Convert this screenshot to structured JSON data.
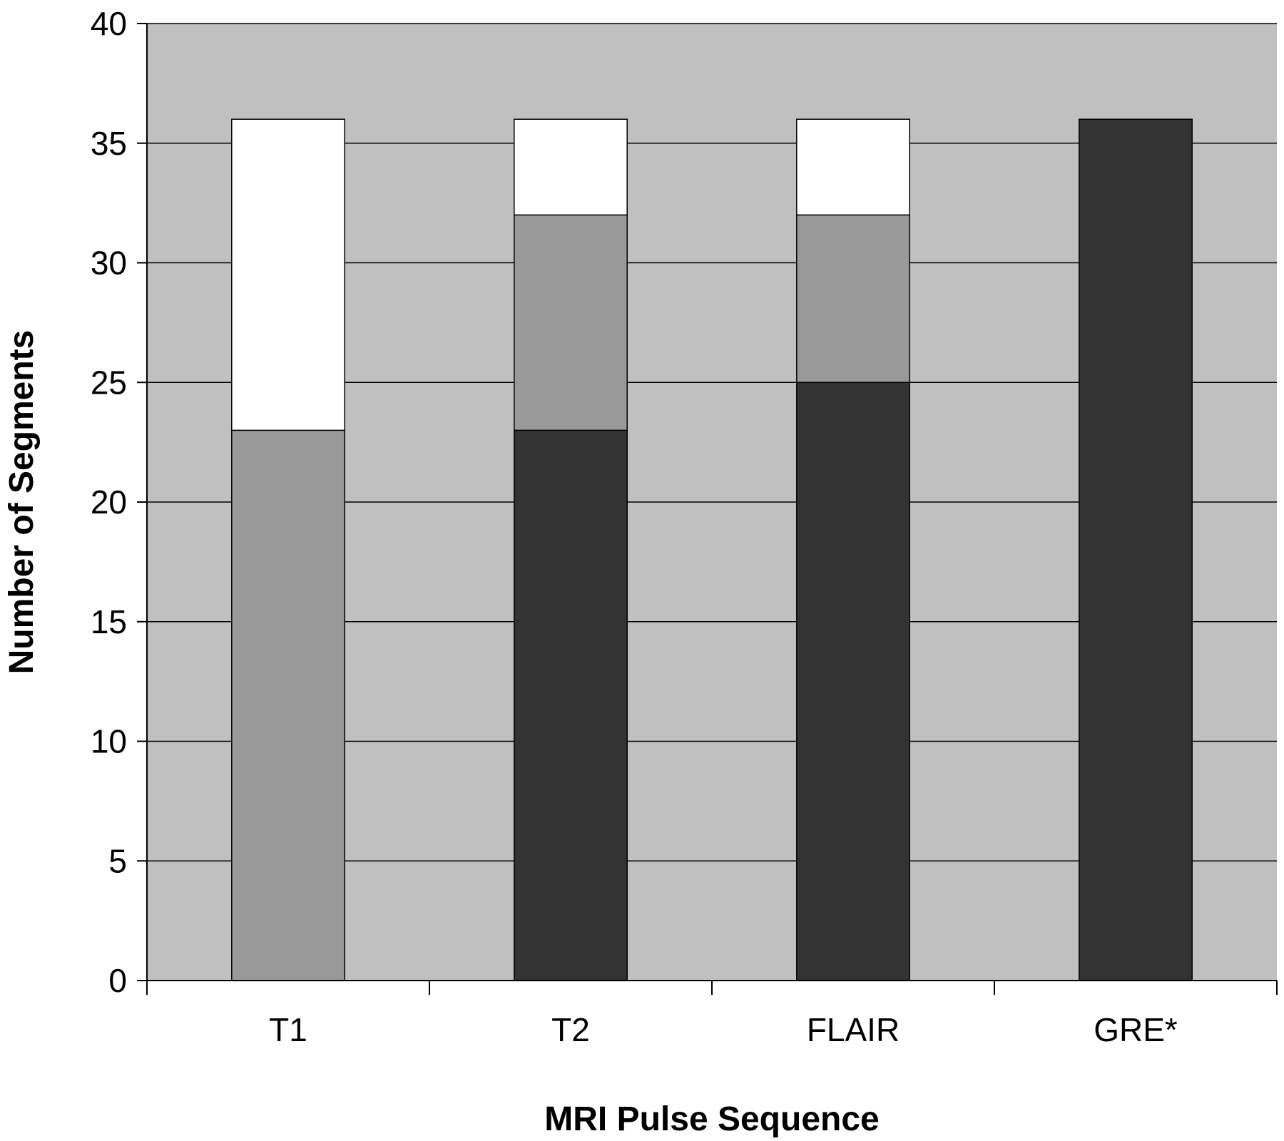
{
  "chart_data": {
    "type": "bar",
    "stacked": true,
    "title": "",
    "xlabel": "MRI Pulse Sequence",
    "ylabel": "Number of Segments",
    "categories": [
      "T1",
      "T2",
      "FLAIR",
      "GRE*"
    ],
    "ylim": [
      0,
      40
    ],
    "yticks": [
      0,
      5,
      10,
      15,
      20,
      25,
      30,
      35,
      40
    ],
    "grid": true,
    "legend": "none",
    "plot_background": "#c0c0c0",
    "series": [
      {
        "color": "#333333",
        "values": [
          0,
          23,
          25,
          36
        ]
      },
      {
        "color": "#999999",
        "values": [
          23,
          9,
          7,
          0
        ]
      },
      {
        "color": "#ffffff",
        "values": [
          13,
          4,
          4,
          0
        ]
      }
    ]
  }
}
